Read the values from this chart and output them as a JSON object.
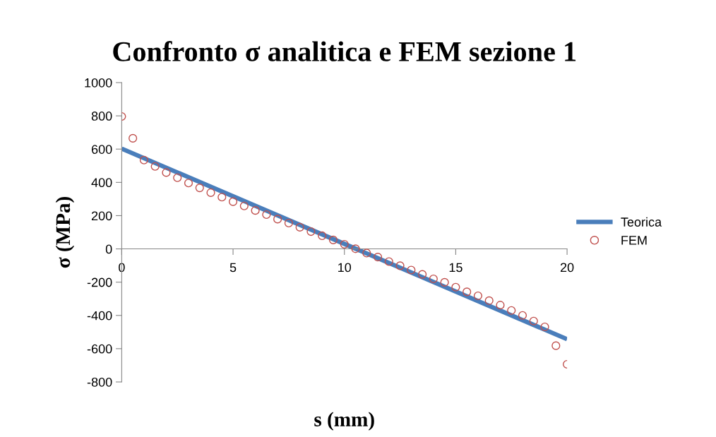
{
  "chart_data": {
    "type": "line",
    "title": "Confronto σ analitica e FEM sezione 1",
    "xlabel": "s (mm)",
    "ylabel": "σ (MPa)",
    "xlim": [
      0,
      20
    ],
    "xticks": [
      0,
      5,
      10,
      15,
      20
    ],
    "ylim": [
      -800,
      1000
    ],
    "yticks": [
      -800,
      -600,
      -400,
      -200,
      0,
      200,
      400,
      600,
      800,
      1000
    ],
    "grid": false,
    "legend": "right",
    "series": [
      {
        "name": "Teorica",
        "color": "#4a7ebb",
        "marker": "none",
        "line_style": "solid",
        "x": [
          0,
          20
        ],
        "values": [
          603,
          -543
        ]
      },
      {
        "name": "FEM",
        "type": "scatter",
        "color": "#c0504d",
        "marker": "circle",
        "x": [
          0,
          0.5,
          1,
          1.5,
          2,
          2.5,
          3,
          3.5,
          4,
          4.5,
          5,
          5.5,
          6,
          6.5,
          7,
          7.5,
          8,
          8.5,
          9,
          9.5,
          10,
          10.5,
          11,
          11.5,
          12,
          12.5,
          13,
          13.5,
          14,
          14.5,
          15,
          15.5,
          16,
          16.5,
          17,
          17.5,
          18,
          18.5,
          19,
          19.5,
          20
        ],
        "values": [
          796,
          665,
          534,
          496,
          459,
          428,
          396,
          367,
          338,
          311,
          284,
          258,
          231,
          206,
          179,
          155,
          130,
          104,
          79,
          54,
          28,
          1,
          -25,
          -49,
          -76,
          -101,
          -127,
          -153,
          -180,
          -201,
          -230,
          -258,
          -282,
          -311,
          -338,
          -370,
          -400,
          -434,
          -469,
          -582,
          -694
        ]
      }
    ]
  }
}
